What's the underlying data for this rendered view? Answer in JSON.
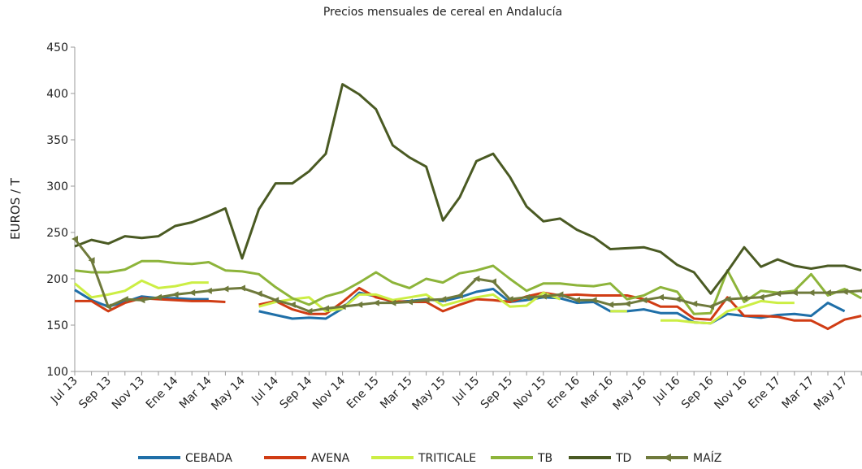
{
  "chart_data": {
    "type": "line",
    "title": "Precios mensuales de cereal en Andalucía",
    "y_label": "EUROS / T",
    "categories": [
      "Jul 13",
      null,
      "Sep 13",
      null,
      "Nov 13",
      null,
      "Ene 14",
      null,
      "Mar 14",
      null,
      "May 14",
      null,
      "Jul 14",
      null,
      "Sep 14",
      null,
      "Nov 14",
      null,
      "Ene 15",
      null,
      "Mar 15",
      null,
      "May 15",
      null,
      "Jul 15",
      null,
      "Sep 15",
      null,
      "Nov 15",
      null,
      "Ene 16",
      null,
      "Mar 16",
      null,
      "May 16",
      null,
      "Jul 16",
      null,
      "Sep 16",
      null,
      "Nov 16",
      null,
      "Ene 17",
      null,
      "Mar 17",
      null,
      "May 17",
      null
    ],
    "ylim": [
      100,
      450
    ],
    "yticks": [
      100,
      150,
      200,
      250,
      300,
      350,
      400,
      450
    ],
    "grid": false,
    "legend": "bottom",
    "series": [
      {
        "name": "CEBADA",
        "color": "#1f6fa8",
        "values": [
          188,
          177,
          170,
          175,
          181,
          179,
          179,
          178,
          178,
          null,
          null,
          165,
          161,
          157,
          158,
          157,
          168,
          185,
          181,
          175,
          176,
          178,
          176,
          180,
          186,
          189,
          175,
          177,
          180,
          179,
          174,
          175,
          165,
          165,
          167,
          163,
          163,
          153,
          152,
          162,
          160,
          158,
          161,
          162,
          160,
          174,
          165,
          null
        ]
      },
      {
        "name": "AVENA",
        "color": "#d03c14",
        "values": [
          176,
          176,
          165,
          174,
          179,
          178,
          177,
          176,
          176,
          175,
          null,
          172,
          176,
          167,
          162,
          162,
          175,
          190,
          180,
          176,
          175,
          175,
          165,
          172,
          178,
          177,
          175,
          181,
          185,
          182,
          183,
          182,
          182,
          182,
          178,
          170,
          170,
          157,
          156,
          180,
          160,
          160,
          159,
          155,
          155,
          146,
          156,
          160
        ]
      },
      {
        "name": "TRITICALE",
        "color": "#ccee44",
        "values": [
          195,
          180,
          183,
          187,
          198,
          190,
          192,
          196,
          196,
          null,
          null,
          170,
          175,
          178,
          180,
          165,
          168,
          183,
          183,
          177,
          180,
          183,
          171,
          176,
          180,
          183,
          170,
          171,
          185,
          178,
          null,
          null,
          165,
          165,
          null,
          155,
          155,
          153,
          152,
          165,
          170,
          176,
          174,
          174,
          null,
          null,
          null,
          null
        ]
      },
      {
        "name": "TB",
        "color": "#8db43a",
        "values": [
          209,
          207,
          207,
          210,
          219,
          219,
          217,
          216,
          218,
          209,
          208,
          205,
          191,
          179,
          172,
          181,
          186,
          196,
          207,
          196,
          190,
          200,
          196,
          206,
          209,
          214,
          200,
          187,
          195,
          195,
          193,
          192,
          195,
          178,
          182,
          191,
          186,
          162,
          163,
          209,
          175,
          187,
          185,
          187,
          205,
          182,
          189,
          179
        ]
      },
      {
        "name": "TD",
        "color": "#4a5a23",
        "values": [
          235,
          242,
          238,
          246,
          244,
          246,
          257,
          261,
          268,
          276,
          222,
          275,
          303,
          303,
          316,
          335,
          410,
          399,
          383,
          344,
          331,
          321,
          263,
          288,
          327,
          335,
          310,
          278,
          262,
          265,
          253,
          245,
          232,
          233,
          234,
          229,
          215,
          207,
          184,
          208,
          234,
          213,
          221,
          214,
          211,
          214,
          214,
          209
        ]
      },
      {
        "name": "MAÍZ",
        "color": "#6f7a3c",
        "marker": "triangle",
        "values": [
          243,
          220,
          170,
          178,
          177,
          180,
          183,
          185,
          187,
          189,
          190,
          184,
          177,
          172,
          165,
          168,
          170,
          172,
          174,
          174,
          175,
          177,
          178,
          182,
          200,
          197,
          178,
          180,
          181,
          183,
          177,
          177,
          172,
          173,
          177,
          180,
          178,
          173,
          170,
          178,
          179,
          180,
          184,
          185,
          185,
          185,
          186,
          187
        ]
      }
    ]
  }
}
